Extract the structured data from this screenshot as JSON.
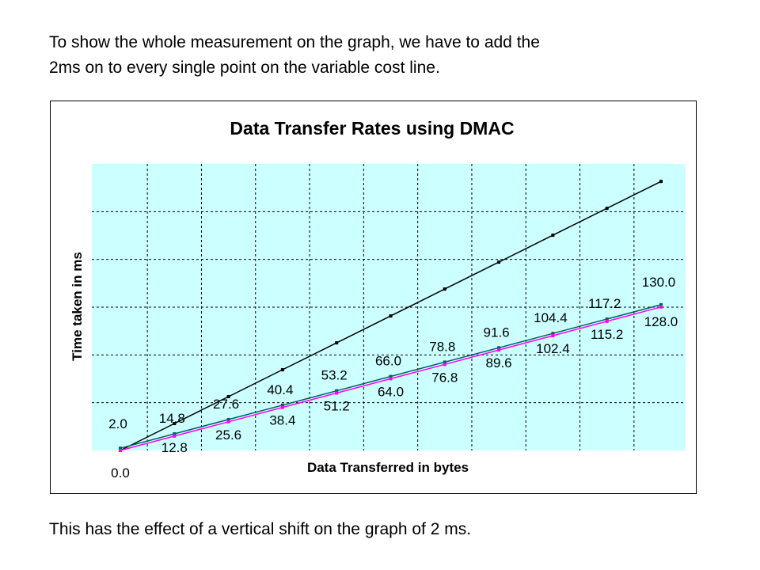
{
  "slide": {
    "intro_line1": "To show the whole measurement on the graph, we have to add the",
    "intro_line2": "2ms on to every single point on the variable cost line.",
    "outro": "This has the effect of a vertical shift on the graph of 2 ms."
  },
  "chart_data": {
    "type": "line",
    "title": "Data Transfer Rates using DMAC",
    "xlabel": "Data Transferred in bytes",
    "ylabel": "Time taken in ms",
    "x": [
      0,
      1,
      2,
      3,
      4,
      5,
      6,
      7,
      8,
      9,
      10
    ],
    "ylim": [
      0,
      250
    ],
    "grid": true,
    "colors": {
      "plot_background": "#ccffff",
      "steep_line": "#000000",
      "shifted_line": "#006060",
      "base_line": "#ff00ff",
      "grid": "#000000"
    },
    "series": [
      {
        "values": [
          0,
          24,
          48,
          72,
          96,
          120,
          144,
          168,
          192,
          216,
          240
        ]
      },
      {
        "values": [
          2.0,
          14.8,
          27.6,
          40.4,
          53.2,
          66.0,
          78.8,
          91.6,
          104.4,
          117.2,
          130.0
        ],
        "labels": [
          "2.0",
          "14.8",
          "27.6",
          "40.4",
          "53.2",
          "66.0",
          "78.8",
          "91.6",
          "104.4",
          "117.2",
          "130.0"
        ]
      },
      {
        "values": [
          0.0,
          12.8,
          25.6,
          38.4,
          51.2,
          64.0,
          76.8,
          89.6,
          102.4,
          115.2,
          128.0
        ],
        "labels": [
          "0.0",
          "12.8",
          "25.6",
          "38.4",
          "51.2",
          "64.0",
          "76.8",
          "89.6",
          "102.4",
          "115.2",
          "128.0"
        ]
      }
    ]
  }
}
